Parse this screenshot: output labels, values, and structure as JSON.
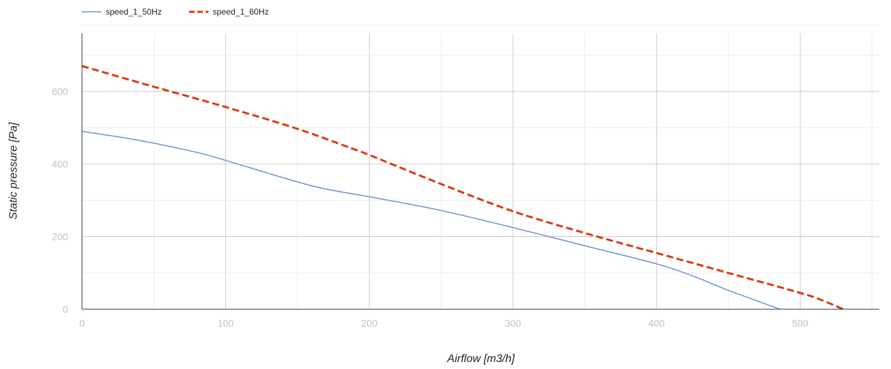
{
  "chart_data": {
    "type": "line",
    "title": "",
    "xlabel": "Airflow [m3/h]",
    "ylabel": "Static pressure [Pa]",
    "xlim": [
      0,
      555
    ],
    "ylim": [
      0,
      760
    ],
    "x_ticks": [
      "0",
      "100",
      "200",
      "300",
      "400",
      "500"
    ],
    "y_ticks": [
      "0",
      "200",
      "400",
      "600"
    ],
    "grid": true,
    "legend_position": "top-left",
    "series": [
      {
        "name": "speed_1_50Hz",
        "color": "#6c8fd8",
        "line_style": "solid",
        "points": [
          [
            0,
            490
          ],
          [
            40,
            465
          ],
          [
            80,
            432
          ],
          [
            100,
            410
          ],
          [
            160,
            340
          ],
          [
            200,
            310
          ],
          [
            250,
            272
          ],
          [
            300,
            225
          ],
          [
            350,
            175
          ],
          [
            400,
            125
          ],
          [
            425,
            92
          ],
          [
            450,
            52
          ],
          [
            486,
            0
          ]
        ]
      },
      {
        "name": "speed_1_60Hz",
        "color": "#dc3912",
        "line_style": "dashed",
        "points": [
          [
            0,
            670
          ],
          [
            50,
            613
          ],
          [
            100,
            557
          ],
          [
            150,
            497
          ],
          [
            190,
            440
          ],
          [
            200,
            425
          ],
          [
            250,
            345
          ],
          [
            300,
            270
          ],
          [
            350,
            210
          ],
          [
            400,
            155
          ],
          [
            450,
            100
          ],
          [
            500,
            45
          ],
          [
            515,
            25
          ],
          [
            530,
            0
          ]
        ]
      }
    ]
  }
}
